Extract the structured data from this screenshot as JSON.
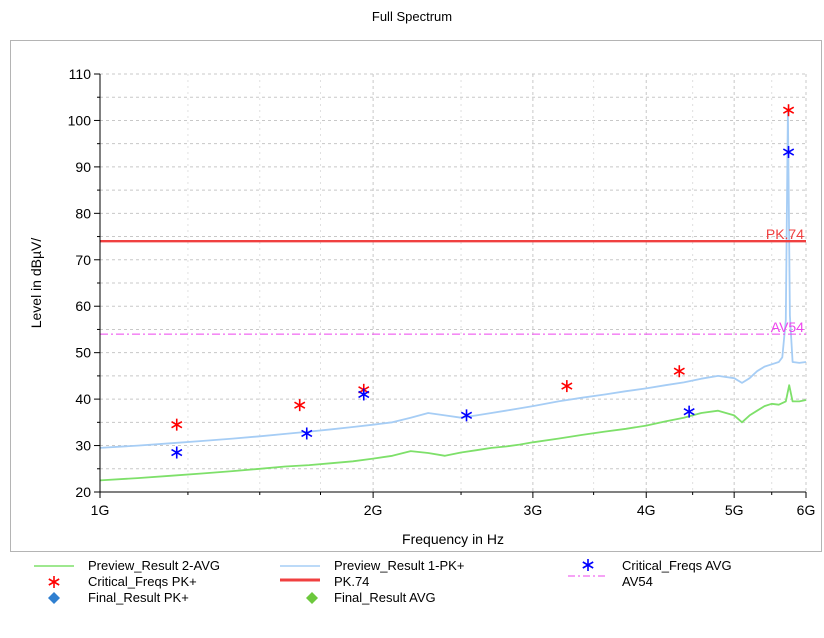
{
  "chart_data": {
    "type": "line",
    "title": "Full Spectrum",
    "xlabel": "Frequency in Hz",
    "ylabel": "Level in dBµV/",
    "x_scale": "log",
    "xlim": [
      1000000000,
      6000000000
    ],
    "ylim": [
      20,
      110
    ],
    "x_ticks": [
      {
        "value": 1000000000,
        "label": "1G"
      },
      {
        "value": 2000000000,
        "label": "2G"
      },
      {
        "value": 3000000000,
        "label": "3G"
      },
      {
        "value": 4000000000,
        "label": "4G"
      },
      {
        "value": 5000000000,
        "label": "5G"
      },
      {
        "value": 6000000000,
        "label": "6G"
      }
    ],
    "y_ticks": [
      20,
      30,
      40,
      50,
      60,
      70,
      80,
      90,
      100,
      110
    ],
    "grid": true,
    "legend_position": "bottom",
    "series": [
      {
        "name": "Preview Result 2-AVG",
        "color": "#7ee06a",
        "kind": "line",
        "x": [
          1000000000,
          1100000000,
          1200000000,
          1300000000,
          1400000000,
          1500000000,
          1600000000,
          1700000000,
          1800000000,
          1900000000,
          2000000000,
          2100000000,
          2200000000,
          2300000000,
          2400000000,
          2500000000,
          2600000000,
          2700000000,
          2800000000,
          2900000000,
          3000000000,
          3200000000,
          3400000000,
          3600000000,
          3800000000,
          4000000000,
          4200000000,
          4400000000,
          4600000000,
          4800000000,
          5000000000,
          5100000000,
          5200000000,
          5300000000,
          5400000000,
          5500000000,
          5600000000,
          5700000000,
          5750000000,
          5800000000,
          5900000000,
          6000000000
        ],
        "y": [
          22.5,
          23.0,
          23.5,
          24.0,
          24.5,
          25.0,
          25.5,
          25.8,
          26.2,
          26.6,
          27.2,
          27.8,
          28.8,
          28.4,
          27.8,
          28.5,
          29.0,
          29.5,
          29.8,
          30.2,
          30.7,
          31.5,
          32.3,
          33.0,
          33.6,
          34.3,
          35.2,
          36.0,
          37.0,
          37.5,
          36.5,
          35.0,
          36.5,
          37.5,
          38.5,
          39.0,
          38.8,
          39.5,
          43.0,
          39.5,
          39.5,
          39.8
        ]
      },
      {
        "name": "Preview Result 1-PK+",
        "color": "#a6cdf5",
        "kind": "line",
        "x": [
          1000000000,
          1100000000,
          1200000000,
          1300000000,
          1400000000,
          1500000000,
          1600000000,
          1700000000,
          1800000000,
          1900000000,
          2000000000,
          2100000000,
          2200000000,
          2300000000,
          2400000000,
          2500000000,
          2600000000,
          2700000000,
          2800000000,
          2900000000,
          3000000000,
          3200000000,
          3400000000,
          3600000000,
          3800000000,
          4000000000,
          4200000000,
          4400000000,
          4600000000,
          4800000000,
          5000000000,
          5100000000,
          5200000000,
          5300000000,
          5400000000,
          5500000000,
          5600000000,
          5650000000,
          5700000000,
          5730000000,
          5760000000,
          5800000000,
          5900000000,
          6000000000
        ],
        "y": [
          29.5,
          30.0,
          30.5,
          31.0,
          31.5,
          32.0,
          32.5,
          33.0,
          33.5,
          34.0,
          34.5,
          35.0,
          36.0,
          37.0,
          36.5,
          36.0,
          36.5,
          37.0,
          37.5,
          38.0,
          38.5,
          39.5,
          40.3,
          41.0,
          41.7,
          42.3,
          43.0,
          43.6,
          44.4,
          45.0,
          44.5,
          43.5,
          44.5,
          46.0,
          47.0,
          47.5,
          48.0,
          49.0,
          57.0,
          102.0,
          58.0,
          48.0,
          47.8,
          48.0
        ]
      },
      {
        "name": "Critical_Freqs PK+",
        "color": "#ff0000",
        "kind": "marker",
        "x": [
          1215000000,
          1660000000,
          1953000000,
          3270000000,
          4350000000,
          5740000000
        ],
        "y": [
          34.5,
          38.7,
          42.0,
          42.8,
          46.0,
          102.2
        ]
      },
      {
        "name": "Critical_Freqs AVG",
        "color": "#0000ff",
        "kind": "marker",
        "x": [
          1215000000,
          1690000000,
          1953000000,
          2535000000,
          4460000000,
          5740000000
        ],
        "y": [
          28.5,
          32.6,
          41.0,
          36.5,
          37.3,
          93.2
        ]
      },
      {
        "name": "PK.74",
        "color": "#f04040",
        "kind": "limit",
        "y": 74,
        "label": "PK.74"
      },
      {
        "name": "AV54",
        "color": "#ee44ee",
        "kind": "limit",
        "y": 54,
        "label": "AV54"
      },
      {
        "name": "Final_Result PK+",
        "color": "#2f7fd0",
        "kind": "legend-only"
      },
      {
        "name": "Final_Result AVG",
        "color": "#6cc83c",
        "kind": "legend-only"
      }
    ]
  },
  "legend": {
    "items": [
      {
        "label": "Preview_Result 2-AVG",
        "symbol": "line",
        "color": "#7ee06a"
      },
      {
        "label": "Preview_Result 1-PK+",
        "symbol": "line",
        "color": "#a6cdf5"
      },
      {
        "label": "Critical_Freqs AVG",
        "symbol": "star",
        "color": "#0000ff"
      },
      {
        "label": "Critical_Freqs PK+",
        "symbol": "star",
        "color": "#ff0000"
      },
      {
        "label": "PK.74",
        "symbol": "thick-line",
        "color": "#f04040"
      },
      {
        "label": "AV54",
        "symbol": "dashdot",
        "color": "#ee44ee"
      },
      {
        "label": "Final_Result PK+",
        "symbol": "diamond",
        "color": "#2f7fd0"
      },
      {
        "label": "Final_Result AVG",
        "symbol": "diamond",
        "color": "#6cc83c"
      }
    ]
  }
}
